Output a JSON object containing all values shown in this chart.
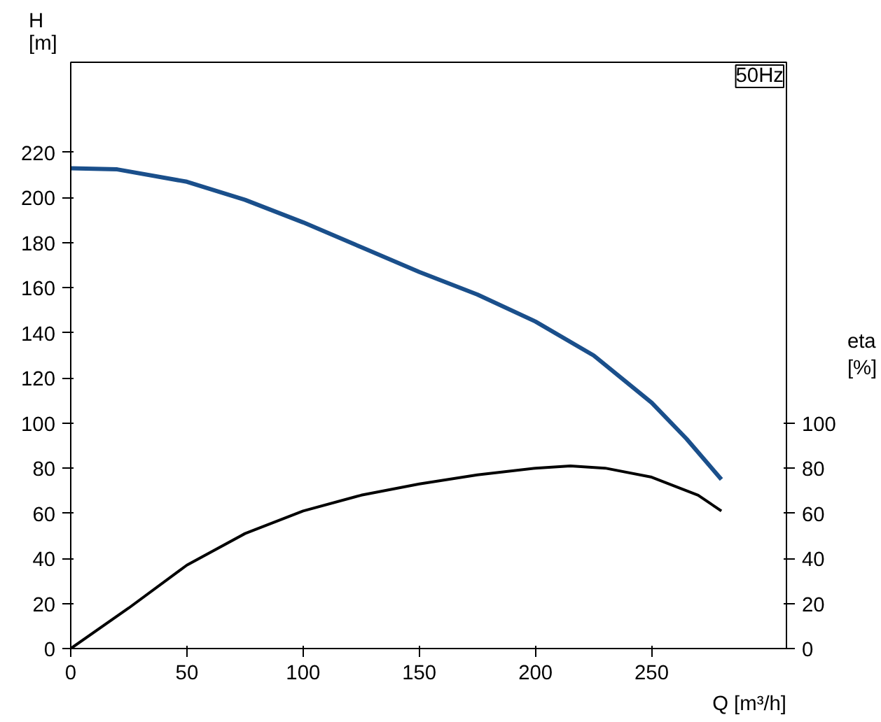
{
  "chart_data": {
    "type": "line",
    "xlabel": "Q [m³/h]",
    "ylabel": "H\n[m]",
    "y2label": "eta\n[%]",
    "xlim": [
      0,
      308
    ],
    "xticks": [
      0,
      50,
      100,
      150,
      200,
      250
    ],
    "ylim": [
      0,
      260
    ],
    "yticks": [
      0,
      20,
      40,
      60,
      80,
      100,
      120,
      140,
      160,
      180,
      200,
      220
    ],
    "y2lim": [
      0,
      260
    ],
    "y2ticks": [
      0,
      20,
      40,
      60,
      80,
      100
    ],
    "grid": false,
    "marker": "none",
    "line_style": "solid",
    "annotations": [
      "50Hz"
    ],
    "series": [
      {
        "color": "#1a4f8b",
        "x": [
          0,
          20,
          50,
          75,
          100,
          125,
          150,
          175,
          200,
          225,
          250,
          265,
          280
        ],
        "values": [
          213,
          212.5,
          207,
          199,
          189,
          178,
          167,
          157,
          145,
          130,
          109,
          93,
          75
        ]
      },
      {
        "color": "#000000",
        "x": [
          0,
          25,
          50,
          75,
          100,
          125,
          150,
          175,
          200,
          215,
          230,
          250,
          270,
          280
        ],
        "values": [
          0,
          18,
          37,
          51,
          61,
          68,
          73,
          77,
          80,
          81,
          80,
          76,
          68,
          61
        ]
      }
    ]
  }
}
